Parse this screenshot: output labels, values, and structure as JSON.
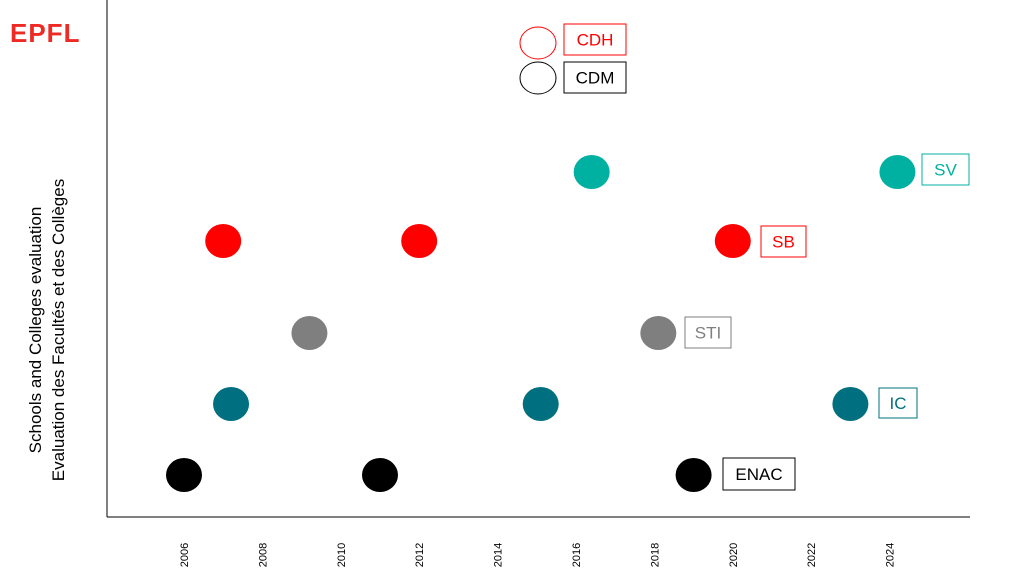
{
  "brand": {
    "logo_text": "EPFL",
    "color": "#ee2a24"
  },
  "y_axis": {
    "line1": "Schools and Colleges evaluation",
    "line2": "Evaluation des Facultés et des Collèges"
  },
  "chart_data": {
    "type": "scatter",
    "title": "",
    "xlabel": "",
    "ylabel": "Schools and Colleges evaluation / Evaluation des Facultés et des Collèges",
    "xlim": [
      2004,
      2026
    ],
    "xticks": [
      2006,
      2008,
      2010,
      2012,
      2014,
      2016,
      2018,
      2020,
      2022,
      2024
    ],
    "grid": false,
    "legend_position": "top-center",
    "series": [
      {
        "name": "ENAC",
        "color": "#000000",
        "filled": true,
        "x": [
          2006.0,
          2011.0,
          2019.0
        ]
      },
      {
        "name": "IC",
        "color": "#007080",
        "filled": true,
        "x": [
          2007.2,
          2015.1,
          2023.0
        ]
      },
      {
        "name": "STI",
        "color": "#7f7f7f",
        "filled": true,
        "x": [
          2009.2,
          2018.1
        ]
      },
      {
        "name": "SB",
        "color": "#ff0000",
        "filled": true,
        "x": [
          2007.0,
          2012.0,
          2020.0
        ]
      },
      {
        "name": "SV",
        "color": "#00b0a0",
        "filled": true,
        "x": [
          2016.4,
          2024.2
        ]
      },
      {
        "name": "CDH",
        "color": "#ff0000",
        "filled": false,
        "x": []
      },
      {
        "name": "CDM",
        "color": "#000000",
        "filled": false,
        "x": []
      }
    ]
  }
}
